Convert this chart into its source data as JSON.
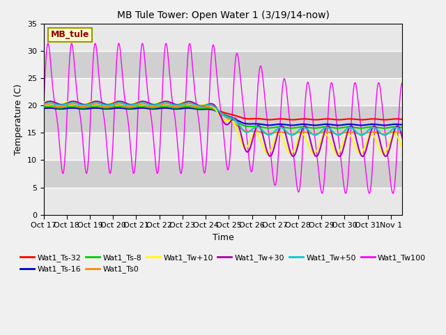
{
  "title": "MB Tule Tower: Open Water 1 (3/19/14-now)",
  "xlabel": "Time",
  "ylabel": "Temperature (C)",
  "ylim": [
    0,
    35
  ],
  "yticks": [
    0,
    5,
    10,
    15,
    20,
    25,
    30,
    35
  ],
  "xlim_days": [
    0,
    15.5
  ],
  "x_tick_labels": [
    "Oct 17",
    "Oct 18",
    "Oct 19",
    "Oct 20",
    "Oct 21",
    "Oct 22",
    "Oct 23",
    "Oct 24",
    "Oct 25",
    "Oct 26",
    "Oct 27",
    "Oct 28",
    "Oct 29",
    "Oct 30",
    "Oct 31",
    "Nov 1"
  ],
  "background_color": "#f0f0f0",
  "plot_bg_color": "#d8d8d8",
  "series": [
    {
      "name": "Wat1_Ts-32",
      "color": "#ff0000"
    },
    {
      "name": "Wat1_Ts-16",
      "color": "#0000cc"
    },
    {
      "name": "Wat1_Ts-8",
      "color": "#00cc00"
    },
    {
      "name": "Wat1_Ts0",
      "color": "#ff8800"
    },
    {
      "name": "Wat1_Tw+10",
      "color": "#ffff00"
    },
    {
      "name": "Wat1_Tw+30",
      "color": "#aa00aa"
    },
    {
      "name": "Wat1_Tw+50",
      "color": "#00cccc"
    },
    {
      "name": "Wat1_Tw100",
      "color": "#ff00ff"
    }
  ],
  "annotation_label": "MB_tule",
  "legend_ncol": 6
}
